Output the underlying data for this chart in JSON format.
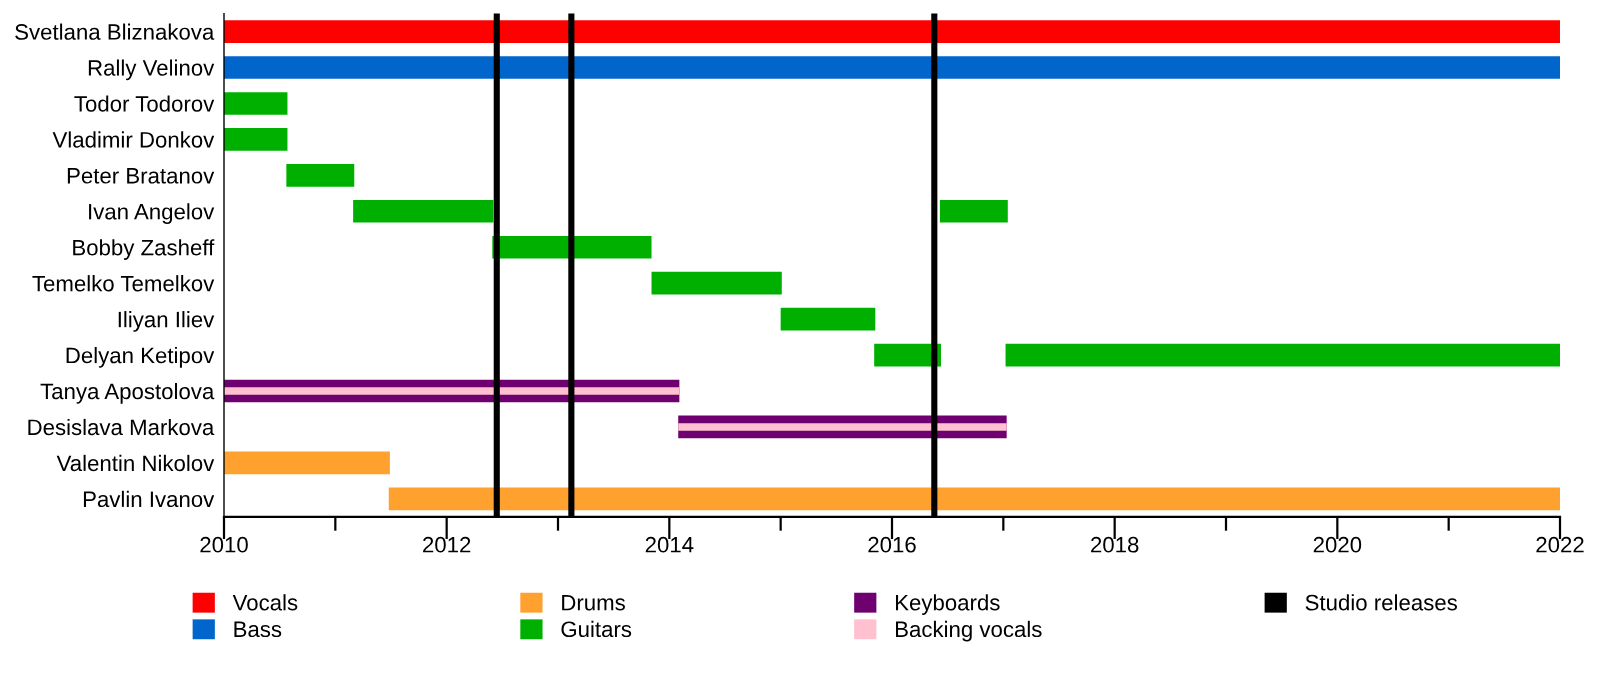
{
  "chart_data": {
    "type": "bar",
    "orientation": "horizontal",
    "categories": [
      "Svetlana Bliznakova",
      "Rally Velinov",
      "Todor Todorov",
      "Vladimir Donkov",
      "Peter Bratanov",
      "Ivan Angelov",
      "Bobby Zasheff",
      "Temelko Temelkov",
      "Iliyan Iliev",
      "Delyan Ketipov",
      "Tanya Apostolova",
      "Desislava Markova",
      "Valentin Nikolov",
      "Pavlin Ivanov"
    ],
    "series": [
      {
        "name": "Vocals",
        "color": "#ff0000",
        "base": [
          2010,
          null,
          null,
          null,
          null,
          null,
          null,
          null,
          null,
          null,
          null,
          null,
          null,
          null
        ],
        "values": [
          12,
          null,
          null,
          null,
          null,
          null,
          null,
          null,
          null,
          null,
          null,
          null,
          null,
          null
        ]
      },
      {
        "name": "Bass",
        "color": "#0066cc",
        "base": [
          null,
          2010,
          null,
          null,
          null,
          null,
          null,
          null,
          null,
          null,
          null,
          null,
          null,
          null
        ],
        "values": [
          null,
          12,
          null,
          null,
          null,
          null,
          null,
          null,
          null,
          null,
          null,
          null,
          null,
          null
        ]
      },
      {
        "name": "Drums",
        "color": "#ffa12f",
        "base": [
          null,
          null,
          null,
          null,
          null,
          null,
          null,
          null,
          null,
          null,
          null,
          null,
          2010,
          2011.48
        ],
        "values": [
          null,
          null,
          null,
          null,
          null,
          null,
          null,
          null,
          null,
          null,
          null,
          null,
          1.49,
          10.52
        ]
      },
      {
        "name": "Guitars",
        "color": "#00b000",
        "base": [
          null,
          null,
          2010,
          2010,
          2010.56,
          2011.16,
          2012.41,
          2013.84,
          2015.0,
          2015.84,
          null,
          null,
          null,
          null
        ],
        "values": [
          null,
          null,
          0.57,
          0.57,
          0.61,
          1.26,
          1.43,
          1.17,
          0.85,
          0.6,
          null,
          null,
          null,
          null
        ]
      },
      {
        "color": "#00b000",
        "base": [
          null,
          null,
          null,
          null,
          null,
          2016.43,
          null,
          null,
          null,
          2017.02,
          null,
          null,
          null,
          null
        ],
        "values": [
          null,
          null,
          null,
          null,
          null,
          0.61,
          null,
          null,
          null,
          4.98,
          null,
          null,
          null,
          null
        ]
      },
      {
        "name": "Keyboards",
        "color": "#6f0070",
        "base": [
          null,
          null,
          null,
          null,
          null,
          null,
          null,
          null,
          null,
          null,
          2010,
          2014.08,
          null,
          null
        ],
        "values": [
          null,
          null,
          null,
          null,
          null,
          null,
          null,
          null,
          null,
          null,
          4.09,
          2.95,
          null,
          null
        ]
      },
      {
        "name": "Backing vocals",
        "color": "#ffc0d0",
        "base": [
          null,
          null,
          null,
          null,
          null,
          null,
          null,
          null,
          null,
          null,
          2010,
          2014.08,
          null,
          null
        ],
        "values": [
          null,
          null,
          null,
          null,
          null,
          null,
          null,
          null,
          null,
          null,
          4.09,
          2.95,
          null,
          null
        ]
      }
    ],
    "ref_lines": [
      {
        "axis": "x",
        "value": 2012.45,
        "label": "Studio releases",
        "color": "#000000"
      },
      {
        "axis": "x",
        "value": 2013.12,
        "color": "#000000"
      },
      {
        "axis": "x",
        "value": 2016.38,
        "color": "#000000"
      }
    ],
    "xlim": [
      2010,
      2022
    ],
    "xticks": [
      2010,
      {
        "value": 2011,
        "label": null
      },
      2012,
      {
        "value": 2013,
        "label": null
      },
      2014,
      {
        "value": 2015,
        "label": null
      },
      2016,
      {
        "value": 2017,
        "label": null
      },
      2018,
      {
        "value": 2019,
        "label": null
      },
      2020,
      {
        "value": 2021,
        "label": null
      },
      2022
    ],
    "grid": false,
    "legend": "bottom"
  }
}
